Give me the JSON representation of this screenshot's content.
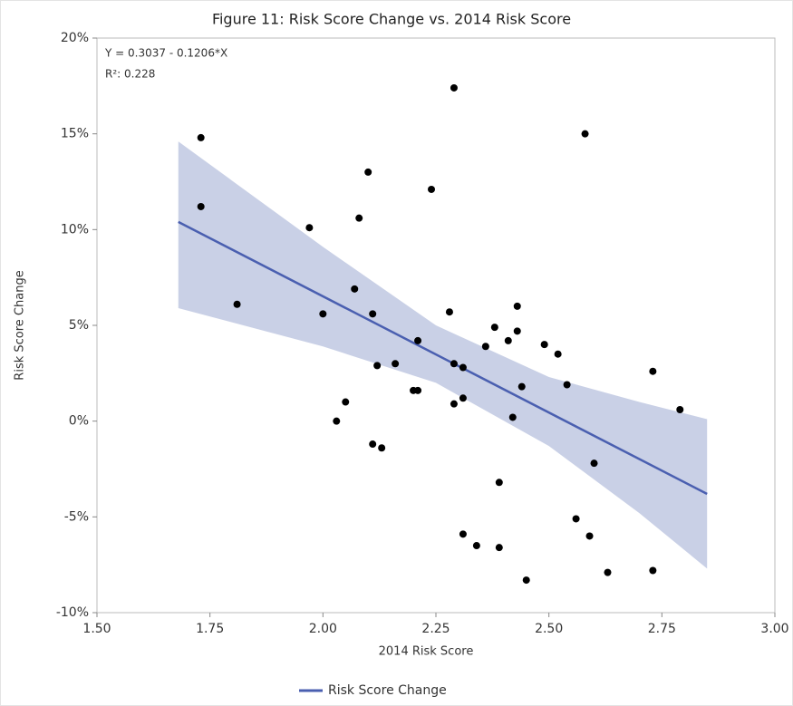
{
  "chart_data": {
    "type": "scatter",
    "title": "Figure 11: Risk Score Change vs. 2014 Risk Score",
    "x_label": "2014 Risk Score",
    "y_label": "Risk Score Change",
    "annotations": [
      "Y = 0.3037 - 0.1206*X",
      "R²: 0.228"
    ],
    "xlim": [
      1.5,
      3.0
    ],
    "ylim": [
      -10,
      20
    ],
    "xticks": [
      {
        "value": 1.5,
        "label": "1.50"
      },
      1.75,
      {
        "value": 2.0,
        "label": "2.00"
      },
      2.25,
      {
        "value": 2.5,
        "label": "2.50"
      },
      2.75,
      {
        "value": 3.0,
        "label": "3.00"
      }
    ],
    "yticks": [
      {
        "value": -10,
        "label": "-10%"
      },
      {
        "value": -5,
        "label": "-5%"
      },
      {
        "value": 0,
        "label": "0%"
      },
      {
        "value": 5,
        "label": "5%"
      },
      {
        "value": 10,
        "label": "10%"
      },
      {
        "value": 15,
        "label": "15%"
      },
      {
        "value": 20,
        "label": "20%"
      }
    ],
    "grid": false,
    "points": {
      "color": "#000000",
      "x": [
        1.73,
        1.73,
        1.81,
        1.97,
        2.0,
        2.03,
        2.05,
        2.07,
        2.08,
        2.1,
        2.11,
        2.11,
        2.13,
        2.12,
        2.16,
        2.2,
        2.21,
        2.21,
        2.24,
        2.28,
        2.29,
        2.29,
        2.29,
        2.31,
        2.31,
        2.31,
        2.34,
        2.36,
        2.38,
        2.39,
        2.39,
        2.41,
        2.43,
        2.43,
        2.42,
        2.44,
        2.45,
        2.49,
        2.52,
        2.54,
        2.56,
        2.58,
        2.59,
        2.6,
        2.63,
        2.73,
        2.73,
        2.79
      ],
      "y": [
        14.8,
        11.2,
        6.1,
        10.1,
        5.6,
        0.0,
        1.0,
        6.9,
        10.6,
        13.0,
        5.6,
        -1.2,
        -1.4,
        2.9,
        3.0,
        1.6,
        1.6,
        4.2,
        12.1,
        5.7,
        0.9,
        3.0,
        17.4,
        2.8,
        1.2,
        -5.9,
        -6.5,
        3.9,
        4.9,
        -3.2,
        -6.6,
        4.2,
        6.0,
        4.7,
        0.2,
        1.8,
        -8.3,
        4.0,
        3.5,
        1.9,
        -5.1,
        15.0,
        -6.0,
        -2.2,
        -7.9,
        2.6,
        -7.8,
        0.6
      ]
    },
    "fit": {
      "name": "Risk Score Change",
      "color": "#4a5fb0",
      "x": [
        1.68,
        2.85
      ],
      "y": [
        10.4,
        -3.8
      ]
    },
    "band": {
      "color": "#c9d0e6",
      "x": [
        1.68,
        2.0,
        2.25,
        2.5,
        2.7,
        2.85
      ],
      "upper": [
        14.6,
        9.1,
        5.0,
        2.3,
        1.0,
        0.1
      ],
      "lower": [
        5.9,
        3.9,
        2.0,
        -1.3,
        -4.8,
        -7.7
      ]
    }
  }
}
